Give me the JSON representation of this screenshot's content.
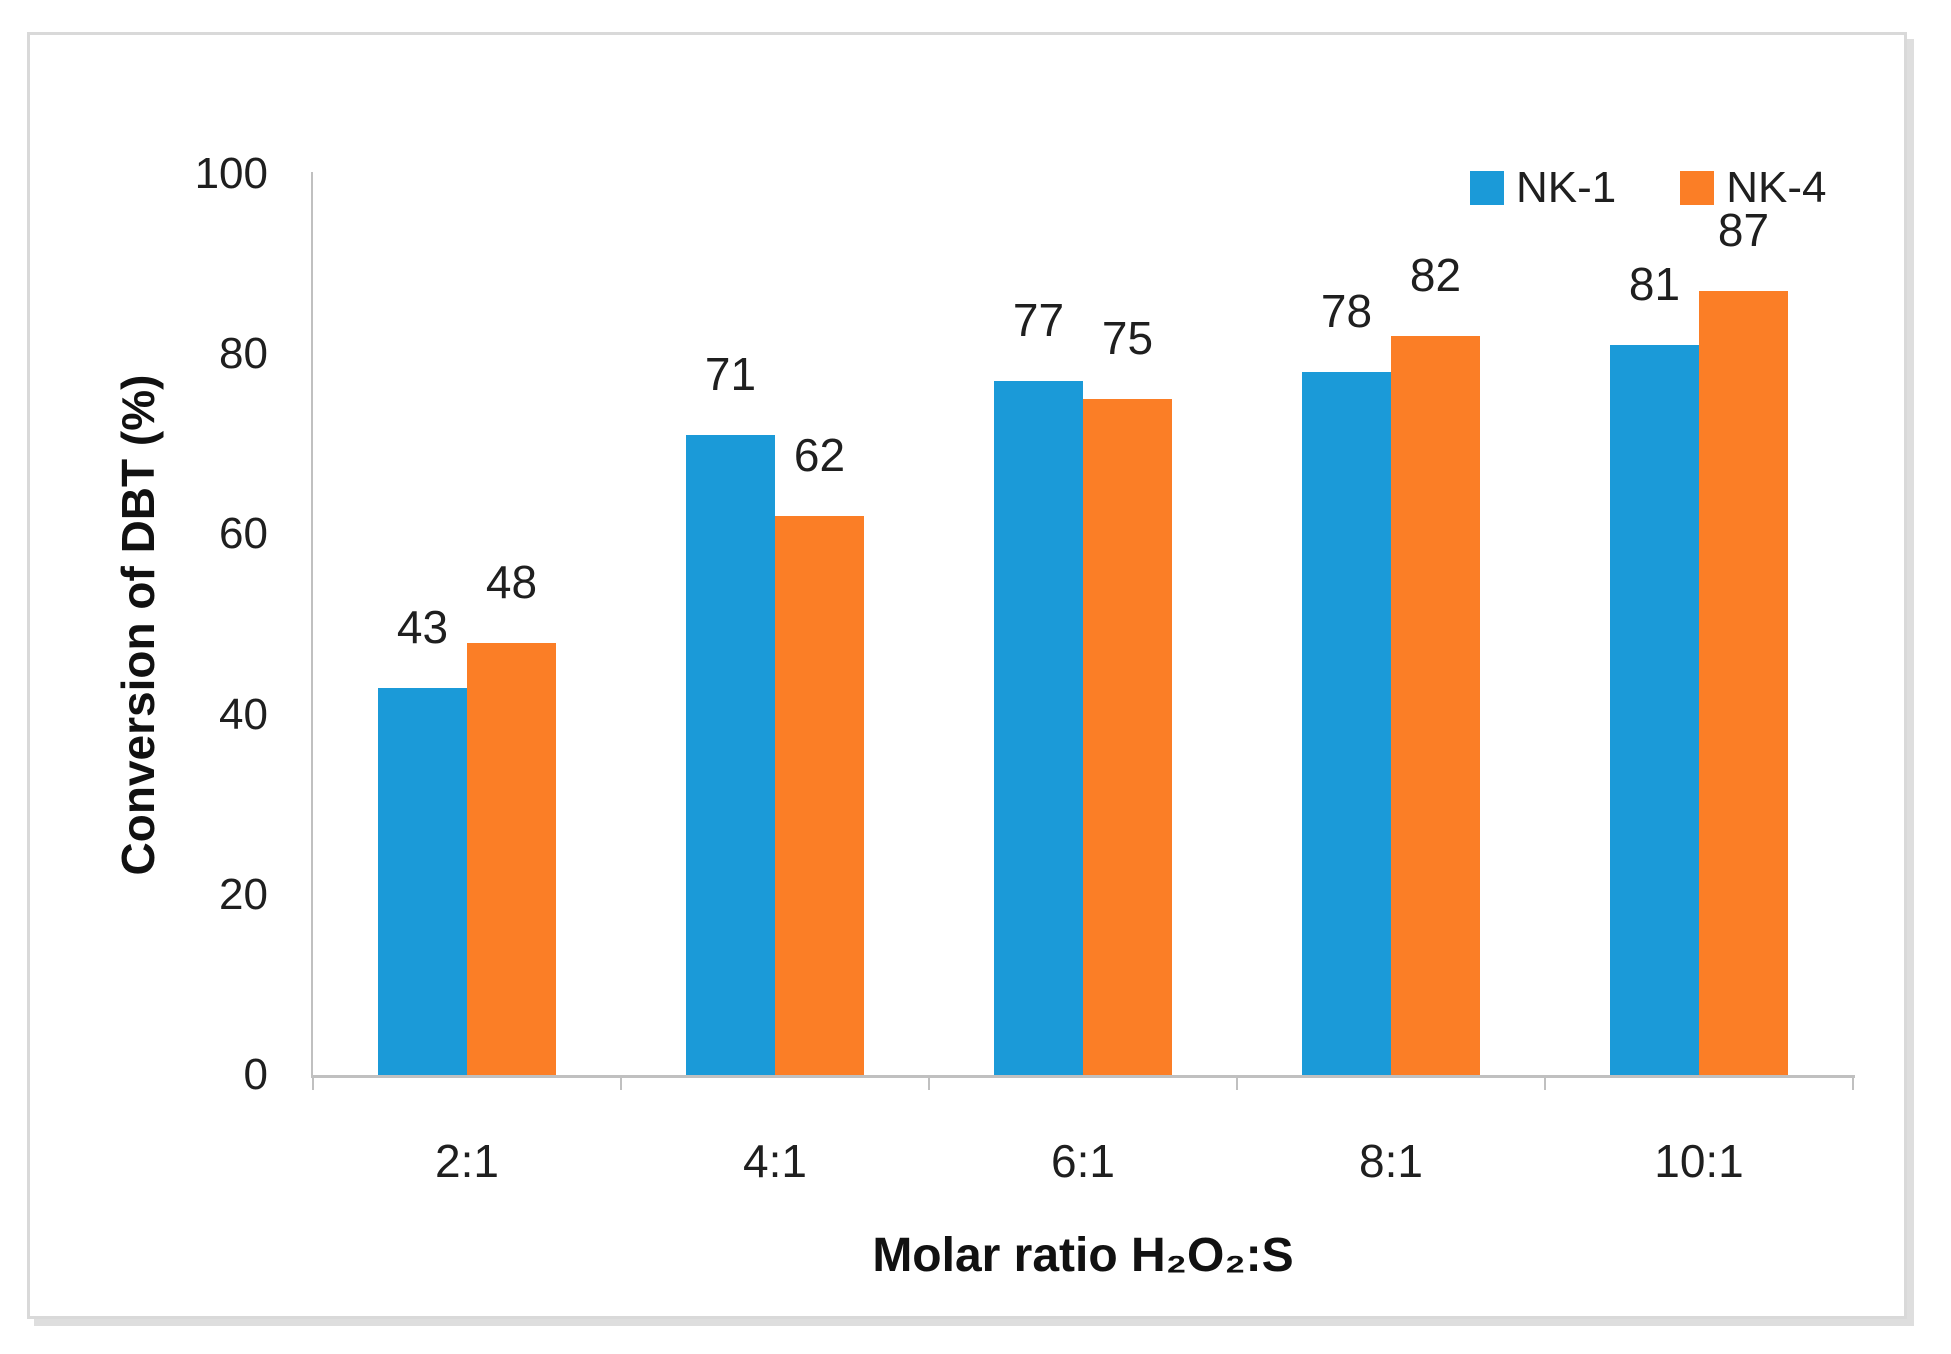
{
  "chart_data": {
    "type": "bar",
    "title": "",
    "categories": [
      "2:1",
      "4:1",
      "6:1",
      "8:1",
      "10:1"
    ],
    "series": [
      {
        "name": "NK-1",
        "color": "#1b9ad8",
        "values": [
          43,
          71,
          77,
          78,
          81
        ]
      },
      {
        "name": "NK-4",
        "color": "#fb7e26",
        "values": [
          48,
          62,
          75,
          82,
          87
        ]
      }
    ],
    "xlabel": "Molar ratio H₂O₂:S",
    "ylabel": "Conversion of DBT (%)",
    "ylim": [
      0,
      100
    ],
    "yticks": [
      0,
      20,
      40,
      60,
      80,
      100
    ],
    "grid": false,
    "legend_position": "top-right",
    "data_labels": true,
    "axis_color": "#c0c0c0"
  }
}
